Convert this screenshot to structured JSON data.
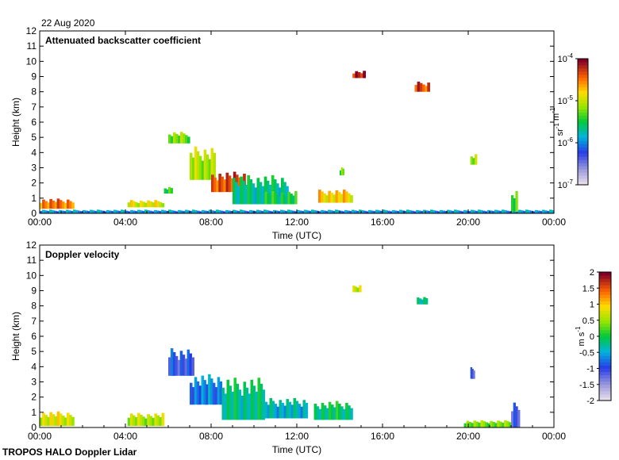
{
  "header": {
    "date": "22 Aug 2020"
  },
  "footer": {
    "instrument": "TROPOS HALO Doppler Lidar"
  },
  "chart_data": [
    {
      "type": "heatmap",
      "title": "Attenuated backscatter coefficient",
      "xlabel": "Time (UTC)",
      "ylabel": "Height (km)",
      "xlim": [
        0,
        24
      ],
      "ylim": [
        0,
        12
      ],
      "x_ticks": [
        "00:00",
        "04:00",
        "08:00",
        "12:00",
        "16:00",
        "20:00",
        "00:00"
      ],
      "y_ticks": [
        "0",
        "1",
        "2",
        "3",
        "4",
        "5",
        "6",
        "7",
        "8",
        "9",
        "10",
        "11",
        "12"
      ],
      "colorbar": {
        "scale": "log",
        "range": [
          1e-07,
          0.0001
        ],
        "ticks": [
          "10-7",
          "10-6",
          "10-5",
          "10-4"
        ],
        "label": "sr-1 m-1"
      },
      "features": [
        {
          "t0": 0.0,
          "t1": 1.6,
          "z0": 0.3,
          "z1": 1.0,
          "level": 0.85
        },
        {
          "t0": 0.0,
          "t1": 24.0,
          "z0": 0.0,
          "z1": 0.25,
          "level": 0.35
        },
        {
          "t0": 4.1,
          "t1": 5.8,
          "z0": 0.4,
          "z1": 0.9,
          "level": 0.7
        },
        {
          "t0": 5.8,
          "t1": 6.2,
          "z0": 1.3,
          "z1": 1.8,
          "level": 0.55
        },
        {
          "t0": 6.0,
          "t1": 7.0,
          "z0": 4.6,
          "z1": 5.4,
          "level": 0.6
        },
        {
          "t0": 7.0,
          "t1": 8.2,
          "z0": 2.2,
          "z1": 4.5,
          "level": 0.65
        },
        {
          "t0": 8.0,
          "t1": 9.6,
          "z0": 1.4,
          "z1": 2.8,
          "level": 0.9
        },
        {
          "t0": 9.0,
          "t1": 11.6,
          "z0": 0.6,
          "z1": 2.6,
          "level": 0.45
        },
        {
          "t0": 10.5,
          "t1": 12.0,
          "z0": 0.6,
          "z1": 1.5,
          "level": 0.5
        },
        {
          "t0": 13.0,
          "t1": 14.6,
          "z0": 0.7,
          "z1": 1.6,
          "level": 0.75
        },
        {
          "t0": 14.0,
          "t1": 14.2,
          "z0": 2.5,
          "z1": 3.1,
          "level": 0.6
        },
        {
          "t0": 14.6,
          "t1": 15.2,
          "z0": 8.9,
          "z1": 9.4,
          "level": 0.95
        },
        {
          "t0": 17.5,
          "t1": 18.2,
          "z0": 8.0,
          "z1": 8.7,
          "level": 0.9
        },
        {
          "t0": 20.1,
          "t1": 20.4,
          "z0": 3.2,
          "z1": 4.0,
          "level": 0.65
        },
        {
          "t0": 22.0,
          "t1": 22.3,
          "z0": 0.1,
          "z1": 1.6,
          "level": 0.55
        }
      ]
    },
    {
      "type": "heatmap",
      "title": "Doppler velocity",
      "xlabel": "Time (UTC)",
      "ylabel": "Height (km)",
      "xlim": [
        0,
        24
      ],
      "ylim": [
        0,
        12
      ],
      "x_ticks": [
        "00:00",
        "04:00",
        "08:00",
        "12:00",
        "16:00",
        "20:00",
        "00:00"
      ],
      "y_ticks": [
        "0",
        "1",
        "2",
        "3",
        "4",
        "5",
        "6",
        "7",
        "8",
        "9",
        "10",
        "11",
        "12"
      ],
      "colorbar": {
        "scale": "linear",
        "range": [
          -2,
          2
        ],
        "ticks": [
          "-2",
          "-1.5",
          "-1",
          "-0.5",
          "0",
          "0.5",
          "1",
          "1.5",
          "2"
        ],
        "label": "m s-1"
      },
      "features": [
        {
          "t0": 0.0,
          "t1": 1.6,
          "z0": 0.1,
          "z1": 1.1,
          "value": 0.8
        },
        {
          "t0": 4.1,
          "t1": 5.8,
          "z0": 0.1,
          "z1": 1.0,
          "value": 0.6
        },
        {
          "t0": 6.0,
          "t1": 7.2,
          "z0": 3.4,
          "z1": 5.3,
          "value": -1.0
        },
        {
          "t0": 7.0,
          "t1": 8.5,
          "z0": 1.5,
          "z1": 3.6,
          "value": -0.7
        },
        {
          "t0": 8.5,
          "t1": 10.5,
          "z0": 0.5,
          "z1": 3.4,
          "value": -0.2
        },
        {
          "t0": 10.5,
          "t1": 12.5,
          "z0": 0.6,
          "z1": 2.0,
          "value": -0.4
        },
        {
          "t0": 12.8,
          "t1": 14.6,
          "z0": 0.5,
          "z1": 1.8,
          "value": -0.1
        },
        {
          "t0": 14.6,
          "t1": 15.0,
          "z0": 8.9,
          "z1": 9.4,
          "value": 0.7
        },
        {
          "t0": 17.6,
          "t1": 18.1,
          "z0": 8.1,
          "z1": 8.6,
          "value": -0.3
        },
        {
          "t0": 20.1,
          "t1": 20.3,
          "z0": 3.2,
          "z1": 4.0,
          "value": -1.2
        },
        {
          "t0": 19.8,
          "t1": 22.0,
          "z0": 0.0,
          "z1": 0.5,
          "value": 0.4
        },
        {
          "t0": 22.0,
          "t1": 22.4,
          "z0": 0.0,
          "z1": 1.8,
          "value": -1.1
        }
      ]
    }
  ]
}
